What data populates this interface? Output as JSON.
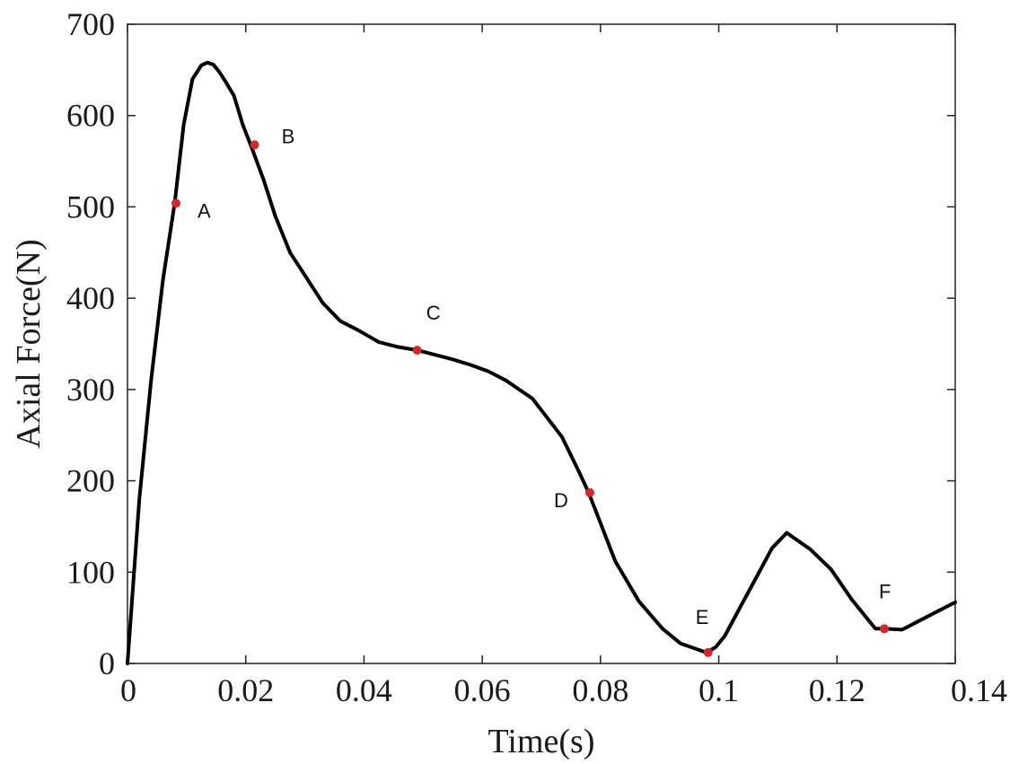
{
  "chart_data": {
    "type": "line",
    "title": "",
    "xlabel": "Time(s)",
    "ylabel": "Axial Force(N)",
    "xlim": [
      0,
      0.14
    ],
    "ylim": [
      0,
      700
    ],
    "xticks": [
      0,
      0.02,
      0.04,
      0.06,
      0.08,
      0.1,
      0.12,
      0.14
    ],
    "xtick_labels": [
      "0",
      "0.02",
      "0.04",
      "0.06",
      "0.08",
      "0.1",
      "0.12",
      "0.14"
    ],
    "yticks": [
      0,
      100,
      200,
      300,
      400,
      500,
      600,
      700
    ],
    "ytick_labels": [
      "0",
      "100",
      "200",
      "300",
      "400",
      "500",
      "600",
      "700"
    ],
    "grid": false,
    "legend": "none",
    "line_color": "#000000",
    "marker_color": "#d62728",
    "series": [
      {
        "x": [
          0,
          0.002,
          0.004,
          0.006,
          0.008,
          0.0095,
          0.011,
          0.0125,
          0.0135,
          0.0145,
          0.0155,
          0.0165,
          0.018,
          0.0195,
          0.021,
          0.023,
          0.025,
          0.0275,
          0.03,
          0.033,
          0.036,
          0.039,
          0.0425,
          0.0455,
          0.049,
          0.052,
          0.055,
          0.058,
          0.061,
          0.064,
          0.0685,
          0.0735,
          0.0765,
          0.078,
          0.0795,
          0.0825,
          0.0865,
          0.0905,
          0.0935,
          0.097,
          0.098,
          0.0995,
          0.101,
          0.1035,
          0.106,
          0.109,
          0.1115,
          0.1155,
          0.119,
          0.1225,
          0.1265,
          0.128,
          0.131,
          0.134,
          0.137,
          0.14
        ],
        "y": [
          0,
          180,
          310,
          420,
          505,
          590,
          640,
          655,
          658,
          656,
          648,
          638,
          622,
          590,
          565,
          530,
          490,
          450,
          425,
          395,
          375,
          365,
          352,
          347,
          343,
          338,
          333,
          327,
          320,
          310,
          290,
          248,
          208,
          187,
          162,
          112,
          68,
          38,
          22,
          14,
          12,
          18,
          30,
          60,
          90,
          126,
          143,
          125,
          103,
          70,
          38,
          38,
          37,
          47,
          57,
          67
        ]
      }
    ],
    "points": [
      {
        "label": "A",
        "x": 0.0082,
        "y": 504
      },
      {
        "label": "B",
        "x": 0.0215,
        "y": 568
      },
      {
        "label": "C",
        "x": 0.049,
        "y": 343
      },
      {
        "label": "D",
        "x": 0.0782,
        "y": 187
      },
      {
        "label": "E",
        "x": 0.0982,
        "y": 12
      },
      {
        "label": "F",
        "x": 0.128,
        "y": 38
      }
    ]
  }
}
